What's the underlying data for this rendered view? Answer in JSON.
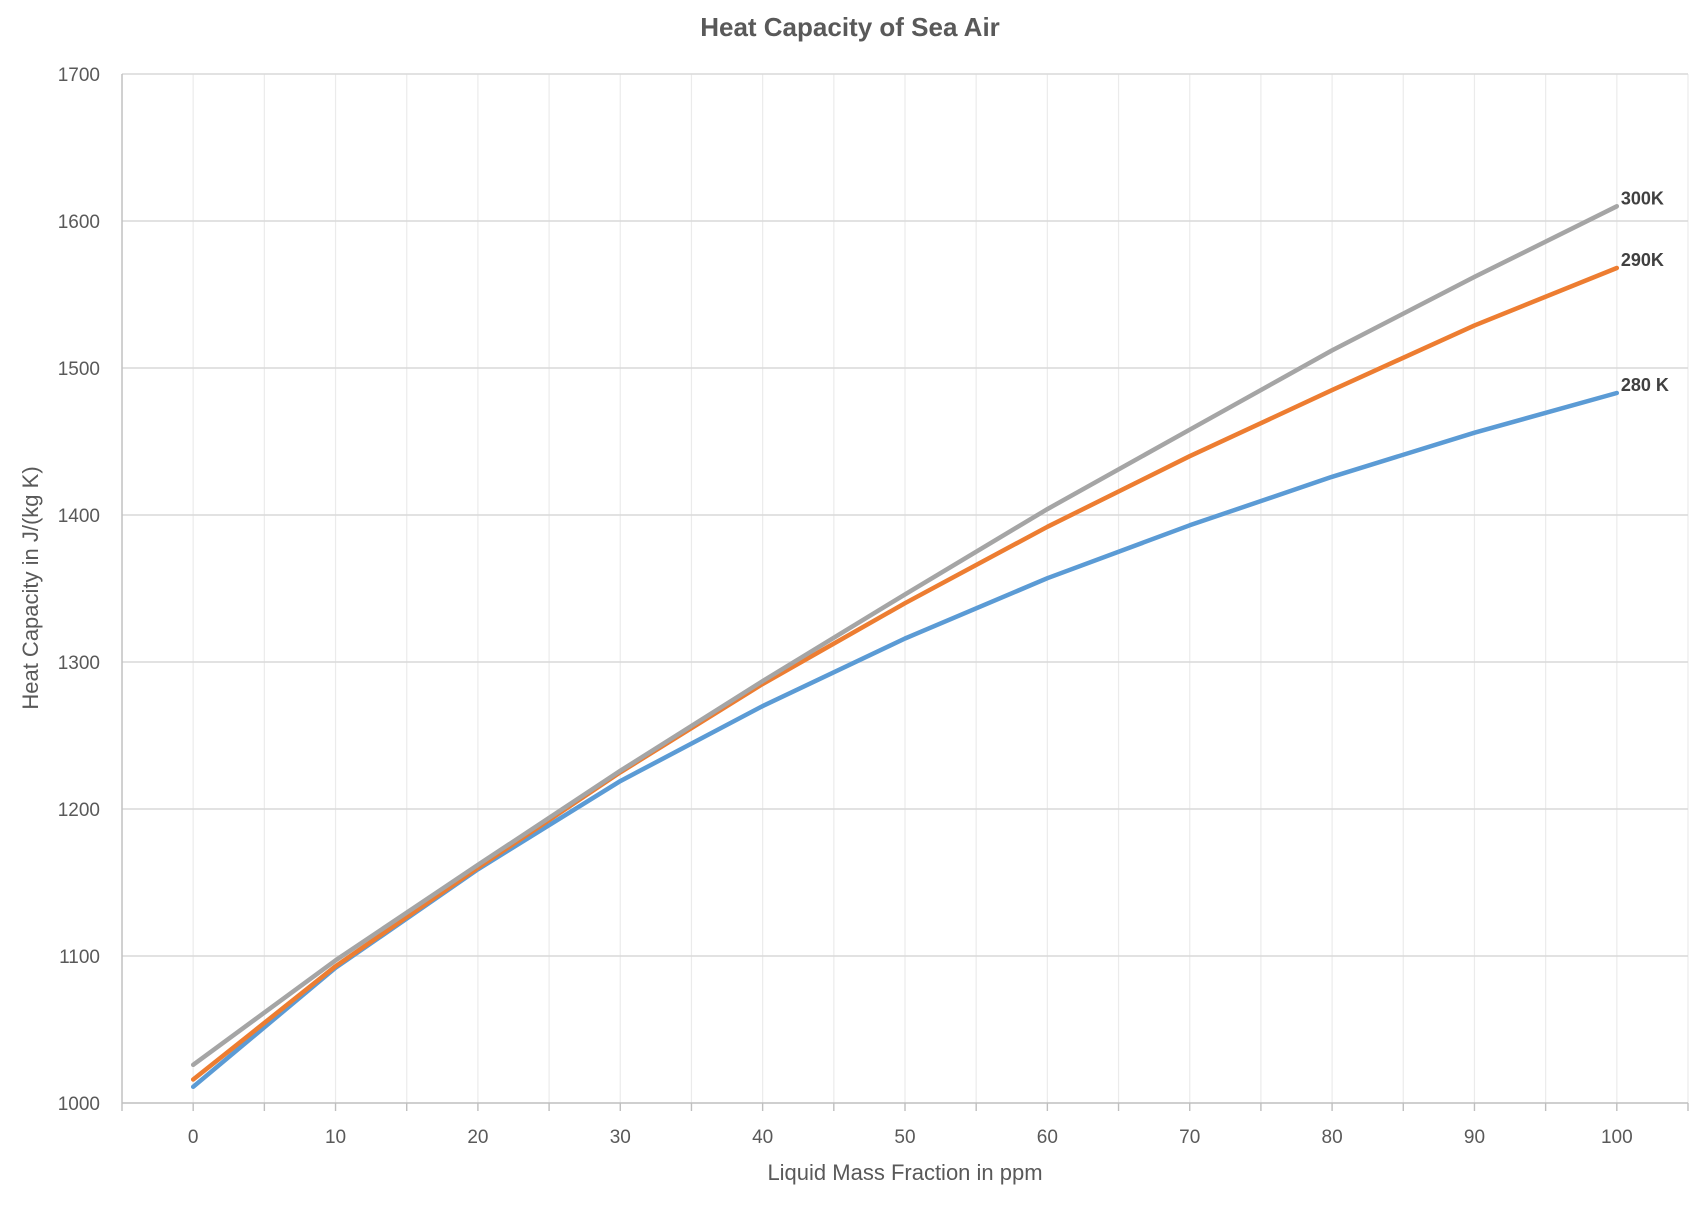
{
  "chart_data": {
    "type": "line",
    "title": "Heat Capacity of Sea Air",
    "xlabel": "Liquid Mass Fraction in ppm",
    "ylabel": "Heat Capacity in J/(kg K)",
    "x": [
      0,
      10,
      20,
      30,
      40,
      50,
      60,
      70,
      80,
      90,
      100
    ],
    "xlim": [
      -5,
      105
    ],
    "ylim": [
      1000,
      1700
    ],
    "x_ticks": [
      0,
      10,
      20,
      30,
      40,
      50,
      60,
      70,
      80,
      90,
      100
    ],
    "y_ticks": [
      1000,
      1100,
      1200,
      1300,
      1400,
      1500,
      1600,
      1700
    ],
    "grid": true,
    "legend": "none",
    "series": [
      {
        "name": "280 K",
        "color": "#5b9bd5",
        "values": [
          1011,
          1092,
          1159,
          1219,
          1270,
          1316,
          1357,
          1393,
          1426,
          1456,
          1483
        ]
      },
      {
        "name": "290K",
        "color": "#ed7d31",
        "values": [
          1016,
          1093,
          1160,
          1225,
          1285,
          1340,
          1392,
          1440,
          1485,
          1529,
          1568
        ]
      },
      {
        "name": "300K",
        "color": "#a5a5a5",
        "values": [
          1026,
          1097,
          1162,
          1226,
          1287,
          1346,
          1404,
          1458,
          1512,
          1562,
          1610
        ]
      }
    ]
  }
}
